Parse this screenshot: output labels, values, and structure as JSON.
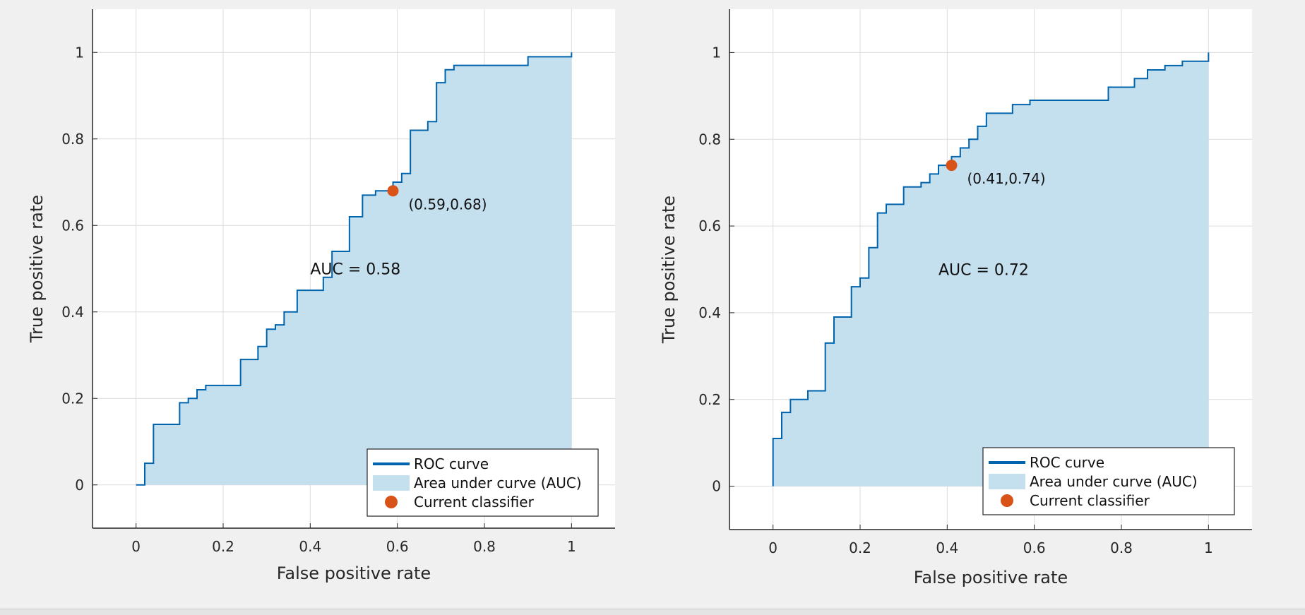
{
  "colors": {
    "curve": "#0064ad",
    "area": "#c4dfee",
    "marker": "#d95319",
    "grid": "#dcdcdc",
    "axes_bg": "#ffffff",
    "figure_bg": "#f0f0f0"
  },
  "chart_data": [
    {
      "type": "line",
      "title": "",
      "xlabel": "False positive rate",
      "ylabel": "True positive rate",
      "xlim": [
        -0.1,
        1.1
      ],
      "ylim": [
        -0.1,
        1.1
      ],
      "xticks": [
        0,
        0.2,
        0.4,
        0.6,
        0.8,
        1
      ],
      "xtick_labels": [
        "0",
        "0.2",
        "0.4",
        "0.6",
        "0.8",
        "1"
      ],
      "yticks": [
        0,
        0.2,
        0.4,
        0.6,
        0.8,
        1
      ],
      "ytick_labels": [
        "0",
        "0.2",
        "0.4",
        "0.6",
        "0.8",
        "1"
      ],
      "grid": true,
      "auc_text": "AUC = 0.58",
      "auc_text_at": [
        0.4,
        0.5
      ],
      "current_point": [
        0.59,
        0.68
      ],
      "current_point_label": "(0.59,0.68)",
      "legend": {
        "position": "bottom-right",
        "entries": [
          "ROC curve",
          "Area under curve (AUC)",
          "Current classifier"
        ]
      },
      "series": [
        {
          "name": "ROC curve",
          "x": [
            0,
            0.02,
            0.02,
            0.04,
            0.04,
            0.1,
            0.1,
            0.12,
            0.12,
            0.14,
            0.14,
            0.16,
            0.16,
            0.24,
            0.24,
            0.28,
            0.28,
            0.3,
            0.3,
            0.32,
            0.32,
            0.34,
            0.34,
            0.37,
            0.37,
            0.43,
            0.43,
            0.45,
            0.45,
            0.49,
            0.49,
            0.52,
            0.52,
            0.55,
            0.55,
            0.59,
            0.59,
            0.61,
            0.61,
            0.63,
            0.63,
            0.67,
            0.67,
            0.69,
            0.69,
            0.71,
            0.71,
            0.73,
            0.73,
            0.9,
            0.9,
            1,
            1
          ],
          "y": [
            0,
            0,
            0.05,
            0.05,
            0.14,
            0.14,
            0.19,
            0.19,
            0.2,
            0.2,
            0.22,
            0.22,
            0.23,
            0.23,
            0.29,
            0.29,
            0.32,
            0.32,
            0.36,
            0.36,
            0.37,
            0.37,
            0.4,
            0.4,
            0.45,
            0.45,
            0.48,
            0.48,
            0.54,
            0.54,
            0.62,
            0.62,
            0.67,
            0.67,
            0.68,
            0.68,
            0.7,
            0.7,
            0.72,
            0.72,
            0.82,
            0.82,
            0.84,
            0.84,
            0.93,
            0.93,
            0.96,
            0.96,
            0.97,
            0.97,
            0.99,
            0.99,
            1.0
          ]
        }
      ]
    },
    {
      "type": "line",
      "title": "",
      "xlabel": "False positive rate",
      "ylabel": "True positive rate",
      "xlim": [
        -0.1,
        1.1
      ],
      "ylim": [
        -0.1,
        1.1
      ],
      "xticks": [
        0,
        0.2,
        0.4,
        0.6,
        0.8,
        1
      ],
      "xtick_labels": [
        "0",
        "0.2",
        "0.4",
        "0.6",
        "0.8",
        "1"
      ],
      "yticks": [
        0,
        0.2,
        0.4,
        0.6,
        0.8,
        1
      ],
      "ytick_labels": [
        "0",
        "0.2",
        "0.4",
        "0.6",
        "0.8",
        "1"
      ],
      "grid": true,
      "auc_text": "AUC = 0.72",
      "auc_text_at": [
        0.38,
        0.5
      ],
      "current_point": [
        0.41,
        0.74
      ],
      "current_point_label": "(0.41,0.74)",
      "legend": {
        "position": "bottom-right",
        "entries": [
          "ROC curve",
          "Area under curve (AUC)",
          "Current classifier"
        ]
      },
      "series": [
        {
          "name": "ROC curve",
          "x": [
            0,
            0,
            0.02,
            0.02,
            0.04,
            0.04,
            0.08,
            0.08,
            0.12,
            0.12,
            0.14,
            0.14,
            0.18,
            0.18,
            0.2,
            0.2,
            0.22,
            0.22,
            0.24,
            0.24,
            0.26,
            0.26,
            0.3,
            0.3,
            0.34,
            0.34,
            0.36,
            0.36,
            0.38,
            0.38,
            0.41,
            0.41,
            0.43,
            0.43,
            0.45,
            0.45,
            0.47,
            0.47,
            0.49,
            0.49,
            0.55,
            0.55,
            0.59,
            0.59,
            0.77,
            0.77,
            0.83,
            0.83,
            0.86,
            0.86,
            0.9,
            0.9,
            0.94,
            0.94,
            1,
            1
          ],
          "y": [
            0,
            0.11,
            0.11,
            0.17,
            0.17,
            0.2,
            0.2,
            0.22,
            0.22,
            0.33,
            0.33,
            0.39,
            0.39,
            0.46,
            0.46,
            0.48,
            0.48,
            0.55,
            0.55,
            0.63,
            0.63,
            0.65,
            0.65,
            0.69,
            0.69,
            0.7,
            0.7,
            0.72,
            0.72,
            0.74,
            0.74,
            0.76,
            0.76,
            0.78,
            0.78,
            0.8,
            0.8,
            0.83,
            0.83,
            0.86,
            0.86,
            0.88,
            0.88,
            0.89,
            0.89,
            0.92,
            0.92,
            0.94,
            0.94,
            0.96,
            0.96,
            0.97,
            0.97,
            0.98,
            0.98,
            1.0
          ]
        }
      ]
    }
  ]
}
